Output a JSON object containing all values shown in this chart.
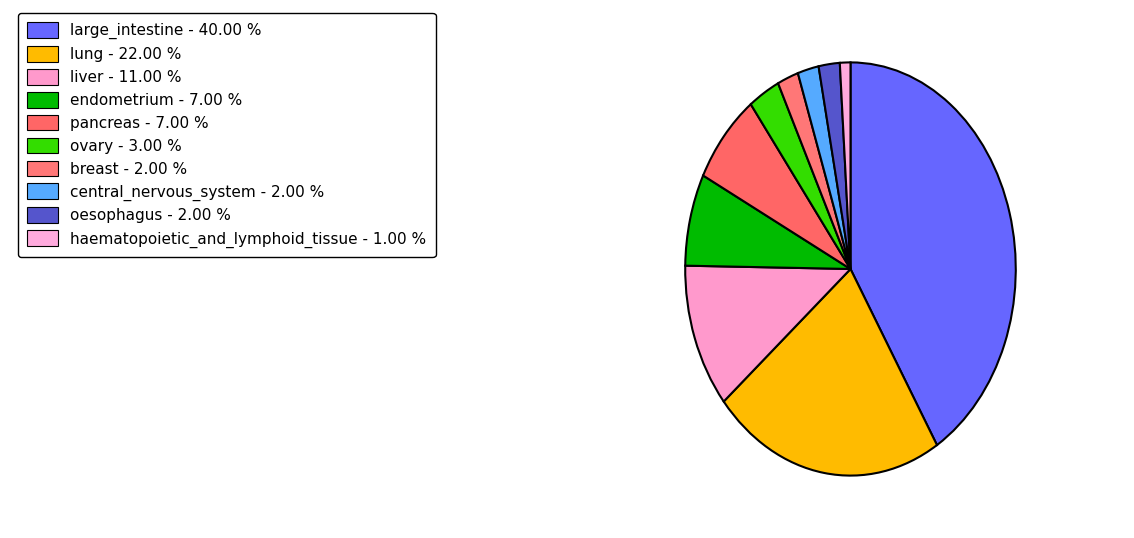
{
  "labels": [
    "large_intestine",
    "lung",
    "liver",
    "endometrium",
    "pancreas",
    "ovary",
    "breast",
    "central_nervous_system",
    "oesophagus",
    "haematopoietic_and_lymphoid_tissue"
  ],
  "values": [
    40.0,
    22.0,
    11.0,
    7.0,
    7.0,
    3.0,
    2.0,
    2.0,
    2.0,
    1.0
  ],
  "colors": [
    "#6666ff",
    "#ffbb00",
    "#ff99cc",
    "#00bb00",
    "#ff6666",
    "#33dd00",
    "#ff7777",
    "#55aaff",
    "#5555cc",
    "#ffaadd"
  ],
  "legend_labels": [
    "large_intestine - 40.00 %",
    "lung - 22.00 %",
    "liver - 11.00 %",
    "endometrium - 7.00 %",
    "pancreas - 7.00 %",
    "ovary - 3.00 %",
    "breast - 2.00 %",
    "central_nervous_system - 2.00 %",
    "oesophagus - 2.00 %",
    "haematopoietic_and_lymphoid_tissue - 1.00 %"
  ],
  "startangle": 90,
  "figsize": [
    11.34,
    5.38
  ],
  "dpi": 100
}
